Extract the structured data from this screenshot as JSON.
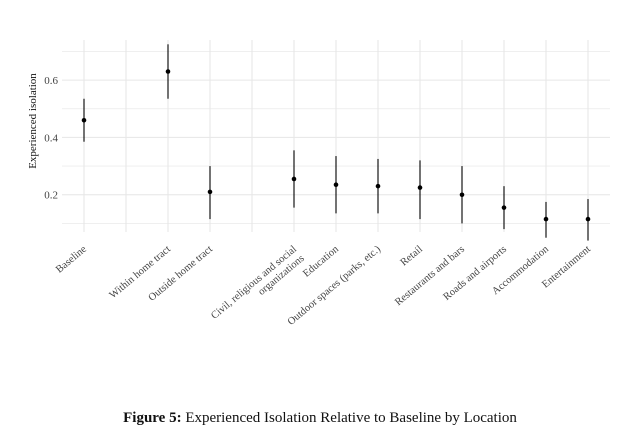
{
  "chart_data": {
    "type": "scatter",
    "subtype": "point-range",
    "ylabel": "Experienced isolation",
    "xlabel": "",
    "yticks": [
      0.2,
      0.4,
      0.6
    ],
    "ylim": [
      0.07,
      0.74
    ],
    "grid": true,
    "categories": [
      "Baseline",
      "",
      "Within home tract",
      "Outside home tract",
      "",
      "Civil, religious and social organizations",
      "Education",
      "Outdoor spaces (parks, etc.)",
      "Retail",
      "Restaurants and bars",
      "Roads and airports",
      "Accommodation",
      "Entertainment"
    ],
    "points": [
      {
        "category": "Baseline",
        "y": 0.46,
        "low": 0.385,
        "high": 0.535
      },
      {
        "category": "Within home tract",
        "y": 0.63,
        "low": 0.535,
        "high": 0.725
      },
      {
        "category": "Outside home tract",
        "y": 0.21,
        "low": 0.115,
        "high": 0.3
      },
      {
        "category": "Civil, religious and social organizations",
        "y": 0.255,
        "low": 0.155,
        "high": 0.355
      },
      {
        "category": "Education",
        "y": 0.235,
        "low": 0.135,
        "high": 0.335
      },
      {
        "category": "Outdoor spaces (parks, etc.)",
        "y": 0.23,
        "low": 0.135,
        "high": 0.325
      },
      {
        "category": "Retail",
        "y": 0.225,
        "low": 0.115,
        "high": 0.32
      },
      {
        "category": "Restaurants and bars",
        "y": 0.2,
        "low": 0.1,
        "high": 0.3
      },
      {
        "category": "Roads and airports",
        "y": 0.155,
        "low": 0.08,
        "high": 0.23
      },
      {
        "category": "Accommodation",
        "y": 0.115,
        "low": 0.05,
        "high": 0.175
      },
      {
        "category": "Entertainment",
        "y": 0.115,
        "low": 0.04,
        "high": 0.185
      }
    ],
    "colors": {
      "point": "#000000",
      "grid": "#e6e6e6",
      "text": "#444444"
    }
  },
  "caption": {
    "label": "Figure 5:",
    "text": "Experienced Isolation Relative to Baseline by Location"
  }
}
